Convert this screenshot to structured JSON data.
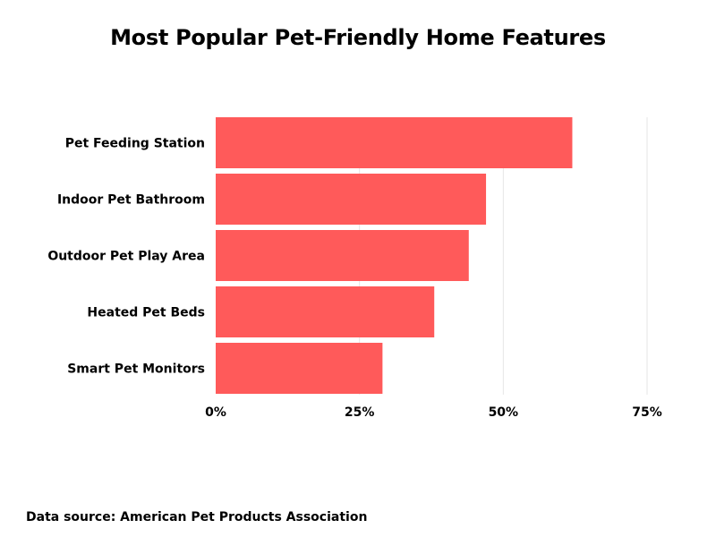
{
  "chart_data": {
    "type": "bar",
    "orientation": "horizontal",
    "title": "Most Popular Pet-Friendly Home Features",
    "categories": [
      "Pet Feeding Station",
      "Indoor Pet Bathroom",
      "Outdoor Pet Play Area",
      "Heated Pet Beds",
      "Smart Pet Monitors"
    ],
    "values": [
      62,
      47,
      44,
      38,
      29
    ],
    "value_unit": "%",
    "xlim": [
      0,
      75
    ],
    "x_ticks": [
      0,
      25,
      50,
      75
    ],
    "x_tick_labels": [
      "0%",
      "25%",
      "50%",
      "75%"
    ],
    "xlabel": "",
    "ylabel": "",
    "grid": "vertical",
    "legend": "none",
    "bar_color": "#FF5A5A",
    "grid_color": "#E6E6E6"
  },
  "footer": {
    "source": "Data source: American Pet Products Association"
  }
}
